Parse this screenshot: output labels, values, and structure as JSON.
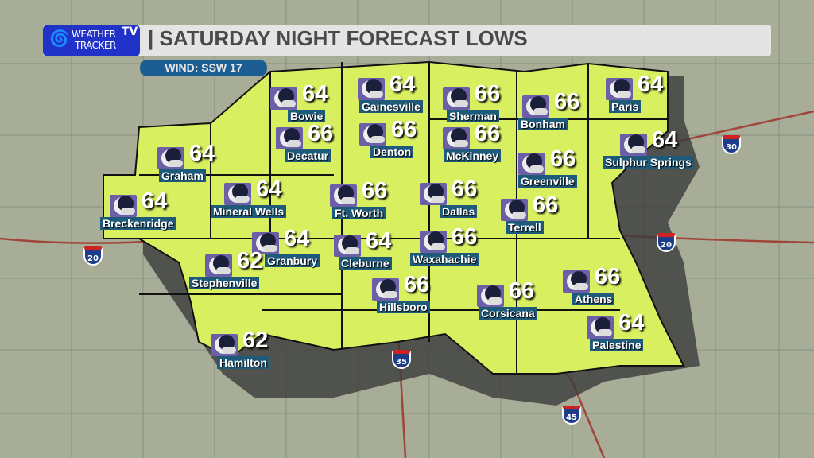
{
  "logo": {
    "line1": "WEATHER",
    "line2": "TRACKER",
    "tv": "TV"
  },
  "title": "| SATURDAY NIGHT FORECAST LOWS",
  "wind": "WIND: SSW 17",
  "colors": {
    "region_fill": "#d8f060",
    "header_bg": "#e4e4e4",
    "logo_bg": "#2032c8",
    "label_bg": "#1f5a7a",
    "wind_bg": "#1c5e93",
    "icon_bg": "#6c5fa8"
  },
  "condition_icon": "night-partly-cloudy-moon-icon",
  "cities": [
    {
      "name": "Bowie",
      "temp": "64"
    },
    {
      "name": "Gainesville",
      "temp": "64"
    },
    {
      "name": "Sherman",
      "temp": "66"
    },
    {
      "name": "Bonham",
      "temp": "66"
    },
    {
      "name": "Paris",
      "temp": "64"
    },
    {
      "name": "Decatur",
      "temp": "66"
    },
    {
      "name": "Denton",
      "temp": "66"
    },
    {
      "name": "McKinney",
      "temp": "66"
    },
    {
      "name": "Sulphur Springs",
      "temp": "64"
    },
    {
      "name": "Graham",
      "temp": "64"
    },
    {
      "name": "Greenville",
      "temp": "66"
    },
    {
      "name": "Mineral Wells",
      "temp": "64"
    },
    {
      "name": "Ft. Worth",
      "temp": "66"
    },
    {
      "name": "Dallas",
      "temp": "66"
    },
    {
      "name": "Breckenridge",
      "temp": "64"
    },
    {
      "name": "Terrell",
      "temp": "66"
    },
    {
      "name": "Granbury",
      "temp": "64"
    },
    {
      "name": "Cleburne",
      "temp": "64"
    },
    {
      "name": "Waxahachie",
      "temp": "66"
    },
    {
      "name": "Stephenville",
      "temp": "62"
    },
    {
      "name": "Athens",
      "temp": "66"
    },
    {
      "name": "Hillsboro",
      "temp": "66"
    },
    {
      "name": "Corsicana",
      "temp": "66"
    },
    {
      "name": "Palestine",
      "temp": "64"
    },
    {
      "name": "Hamilton",
      "temp": "62"
    }
  ],
  "interstates": [
    "30",
    "20",
    "20",
    "35",
    "45"
  ]
}
